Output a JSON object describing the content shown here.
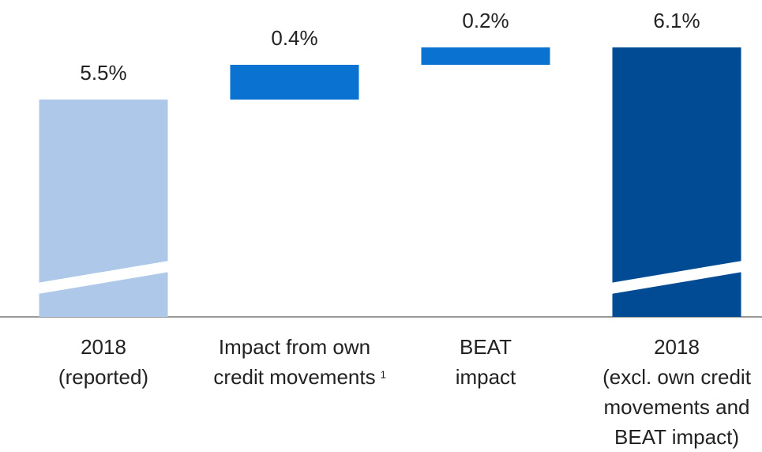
{
  "chart_data": {
    "type": "waterfall",
    "categories": [
      [
        "2018",
        "(reported)"
      ],
      [
        "Impact from own",
        "credit movements"
      ],
      [
        "BEAT",
        "impact"
      ],
      [
        "2018",
        "(excl. own credit",
        "movements and",
        "BEAT impact)"
      ]
    ],
    "category_footnotes": [
      null,
      "1",
      null,
      null
    ],
    "values": [
      5.5,
      0.4,
      0.2,
      6.1
    ],
    "value_labels": [
      "5.5%",
      "0.4%",
      "0.2%",
      "6.1%"
    ],
    "totals": [
      true,
      false,
      false,
      true
    ],
    "colors": [
      "#adc8e8",
      "#0a72d1",
      "#0a72d1",
      "#004b93"
    ],
    "ylim": [
      3,
      6.5
    ],
    "axis_break": true
  }
}
